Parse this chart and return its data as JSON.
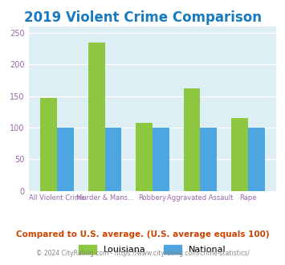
{
  "title": "2019 Violent Crime Comparison",
  "title_color": "#1a7abf",
  "categories": [
    "All Violent Crime",
    "Murder & Mans...",
    "Robbery",
    "Aggravated Assault",
    "Rape"
  ],
  "louisiana_values": [
    147,
    234,
    107,
    162,
    115
  ],
  "national_values": [
    100,
    100,
    100,
    100,
    100
  ],
  "louisiana_color": "#8dc63f",
  "national_color": "#4da6e0",
  "bg_color": "#ddeef5",
  "ylim": [
    0,
    260
  ],
  "yticks": [
    0,
    50,
    100,
    150,
    200,
    250
  ],
  "ylabel": "",
  "xlabel": "",
  "legend_labels": [
    "Louisiana",
    "National"
  ],
  "footnote1": "Compared to U.S. average. (U.S. average equals 100)",
  "footnote2": "© 2024 CityRating.com - https://www.cityrating.com/crime-statistics/",
  "footnote1_color": "#cc4400",
  "footnote2_color": "#888888",
  "tick_label_color": "#9966aa",
  "grid_color": "#ffffff",
  "bar_width": 0.35
}
